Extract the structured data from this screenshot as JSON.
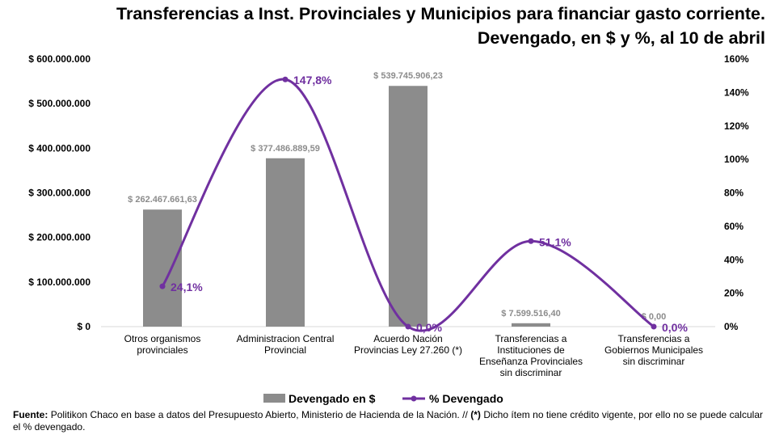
{
  "title_line1": "Transferencias a Inst. Provinciales y Municipios para financiar gasto corriente.",
  "title_line2": "Devengado, en $ y %, al 10 de abril",
  "chart_data": {
    "type": "bar",
    "categories": [
      [
        "Otros organismos",
        "provinciales"
      ],
      [
        "Administracion Central",
        "Provincial"
      ],
      [
        "Acuerdo Nación",
        "Provincias Ley 27.260 (*)"
      ],
      [
        "Transferencias a",
        "Instituciones de",
        "Enseñanza Provinciales",
        "sin discriminar"
      ],
      [
        "Transferencias a",
        "Gobiernos Municipales",
        "sin discriminar"
      ]
    ],
    "series": [
      {
        "name": "Devengado en $",
        "type": "bar",
        "axis": "left",
        "values": [
          262467661.63,
          377486889.59,
          539745906.23,
          7599516.4,
          0
        ],
        "labels": [
          "$ 262.467.661,63",
          "$ 377.486.889,59",
          "$ 539.745.906,23",
          "$ 7.599.516,40",
          "$ 0,00"
        ],
        "color": "#8c8c8c"
      },
      {
        "name": "% Devengado",
        "type": "line",
        "axis": "right",
        "values": [
          24.1,
          147.8,
          0.0,
          51.1,
          0.0
        ],
        "labels": [
          "24,1%",
          "147,8%",
          "0,0%",
          "51,1%",
          "0,0%"
        ],
        "color": "#7030a0"
      }
    ],
    "y_left": {
      "min": 0,
      "max": 600000000,
      "ticks": [
        "$ 0",
        "$ 100.000.000",
        "$ 200.000.000",
        "$ 300.000.000",
        "$ 400.000.000",
        "$ 500.000.000",
        "$ 600.000.000"
      ]
    },
    "y_right": {
      "min": 0,
      "max": 160,
      "ticks": [
        "0%",
        "20%",
        "40%",
        "60%",
        "80%",
        "100%",
        "120%",
        "140%",
        "160%"
      ]
    },
    "grid": false,
    "legend_position": "bottom"
  },
  "source": {
    "label": "Fuente:",
    "text": " Politikon Chaco en base a datos del Presupuesto Abierto, Ministerio de Hacienda de la Nación. // ",
    "note_mark": "(*)",
    "note": " Dicho ítem no tiene crédito vigente, por ello no se puede calcular el % devengado."
  }
}
